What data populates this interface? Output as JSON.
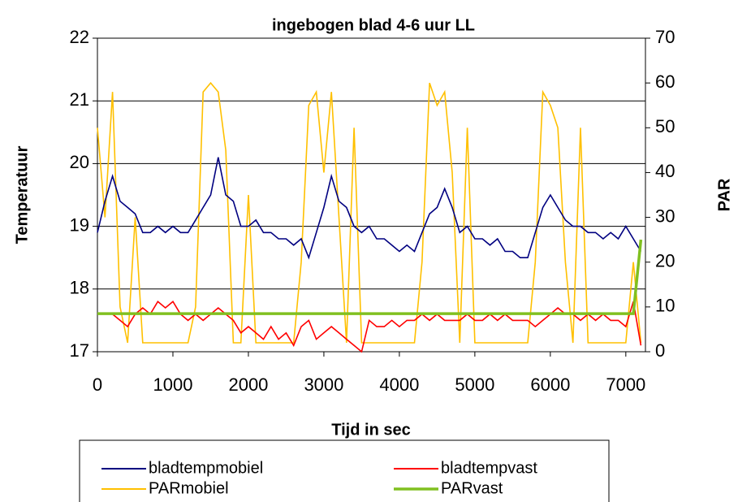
{
  "chart_data": {
    "type": "line",
    "title": "ingebogen blad 4-6 uur LL",
    "xlabel": "Tijd in sec",
    "ylabel": "Temperatuur",
    "y2label": "PAR",
    "x": [
      0,
      100,
      200,
      300,
      400,
      500,
      600,
      700,
      800,
      900,
      1000,
      1100,
      1200,
      1300,
      1400,
      1500,
      1600,
      1700,
      1800,
      1900,
      2000,
      2100,
      2200,
      2300,
      2400,
      2500,
      2600,
      2700,
      2800,
      2900,
      3000,
      3100,
      3200,
      3300,
      3400,
      3500,
      3600,
      3700,
      3800,
      3900,
      4000,
      4100,
      4200,
      4300,
      4400,
      4500,
      4600,
      4700,
      4800,
      4900,
      5000,
      5100,
      5200,
      5300,
      5400,
      5500,
      5600,
      5700,
      5800,
      5900,
      6000,
      6100,
      6200,
      6300,
      6400,
      6500,
      6600,
      6700,
      6800,
      6900,
      7000,
      7100,
      7200
    ],
    "xlim": [
      0,
      7260
    ],
    "xticks": [
      0,
      1000,
      2000,
      3000,
      4000,
      5000,
      6000,
      7000
    ],
    "ylim": [
      17,
      22
    ],
    "yticks": [
      17,
      18,
      19,
      20,
      21,
      22
    ],
    "y2lim": [
      0,
      70
    ],
    "y2ticks": [
      0,
      10,
      20,
      30,
      40,
      50,
      60,
      70
    ],
    "grid": true,
    "series": [
      {
        "name": "bladtempmobiel",
        "color": "#000080",
        "axis": "y",
        "values": [
          18.9,
          19.4,
          19.8,
          19.4,
          19.3,
          19.2,
          18.9,
          18.9,
          19.0,
          18.9,
          19.0,
          18.9,
          18.9,
          19.1,
          19.3,
          19.5,
          20.1,
          19.5,
          19.4,
          19.0,
          19.0,
          19.1,
          18.9,
          18.9,
          18.8,
          18.8,
          18.7,
          18.8,
          18.5,
          18.9,
          19.3,
          19.8,
          19.4,
          19.3,
          19.0,
          18.9,
          19.0,
          18.8,
          18.8,
          18.7,
          18.6,
          18.7,
          18.6,
          18.9,
          19.2,
          19.3,
          19.6,
          19.3,
          18.9,
          19.0,
          18.8,
          18.8,
          18.7,
          18.8,
          18.6,
          18.6,
          18.5,
          18.5,
          18.9,
          19.3,
          19.5,
          19.3,
          19.1,
          19.0,
          19.0,
          18.9,
          18.9,
          18.8,
          18.9,
          18.8,
          19.0,
          18.8,
          18.6
        ]
      },
      {
        "name": "bladtempvast",
        "color": "#ff0000",
        "axis": "y",
        "values": [
          17.6,
          17.6,
          17.6,
          17.5,
          17.4,
          17.6,
          17.7,
          17.6,
          17.8,
          17.7,
          17.8,
          17.6,
          17.5,
          17.6,
          17.5,
          17.6,
          17.7,
          17.6,
          17.5,
          17.3,
          17.4,
          17.3,
          17.2,
          17.4,
          17.2,
          17.3,
          17.1,
          17.4,
          17.5,
          17.2,
          17.3,
          17.4,
          17.3,
          17.2,
          17.1,
          17.0,
          17.5,
          17.4,
          17.4,
          17.5,
          17.4,
          17.5,
          17.5,
          17.6,
          17.5,
          17.6,
          17.5,
          17.5,
          17.5,
          17.6,
          17.5,
          17.5,
          17.6,
          17.5,
          17.6,
          17.5,
          17.5,
          17.5,
          17.4,
          17.5,
          17.6,
          17.7,
          17.6,
          17.6,
          17.5,
          17.6,
          17.5,
          17.6,
          17.5,
          17.5,
          17.4,
          17.8,
          17.1
        ]
      },
      {
        "name": "PARmobiel",
        "color": "#ffc000",
        "axis": "y2",
        "values": [
          50,
          30,
          58,
          10,
          2,
          30,
          2,
          2,
          2,
          2,
          2,
          2,
          2,
          10,
          58,
          60,
          58,
          45,
          2,
          2,
          35,
          2,
          2,
          2,
          2,
          2,
          2,
          20,
          55,
          58,
          40,
          58,
          30,
          2,
          50,
          2,
          2,
          2,
          2,
          2,
          2,
          2,
          2,
          20,
          60,
          55,
          58,
          40,
          2,
          50,
          2,
          2,
          2,
          2,
          2,
          2,
          2,
          2,
          20,
          58,
          55,
          50,
          20,
          2,
          50,
          2,
          2,
          2,
          2,
          2,
          2,
          20,
          2
        ]
      },
      {
        "name": "PARvast",
        "color": "#80c020",
        "axis": "y2",
        "values": [
          8.5,
          8.5,
          8.5,
          8.5,
          8.5,
          8.5,
          8.5,
          8.5,
          8.5,
          8.5,
          8.5,
          8.5,
          8.5,
          8.5,
          8.5,
          8.5,
          8.5,
          8.5,
          8.5,
          8.5,
          8.5,
          8.5,
          8.5,
          8.5,
          8.5,
          8.5,
          8.5,
          8.5,
          8.5,
          8.5,
          8.5,
          8.5,
          8.5,
          8.5,
          8.5,
          8.5,
          8.5,
          8.5,
          8.5,
          8.5,
          8.5,
          8.5,
          8.5,
          8.5,
          8.5,
          8.5,
          8.5,
          8.5,
          8.5,
          8.5,
          8.5,
          8.5,
          8.5,
          8.5,
          8.5,
          8.5,
          8.5,
          8.5,
          8.5,
          8.5,
          8.5,
          8.5,
          8.5,
          8.5,
          8.5,
          8.5,
          8.5,
          8.5,
          8.5,
          8.5,
          8.5,
          8.5,
          25
        ]
      }
    ]
  }
}
